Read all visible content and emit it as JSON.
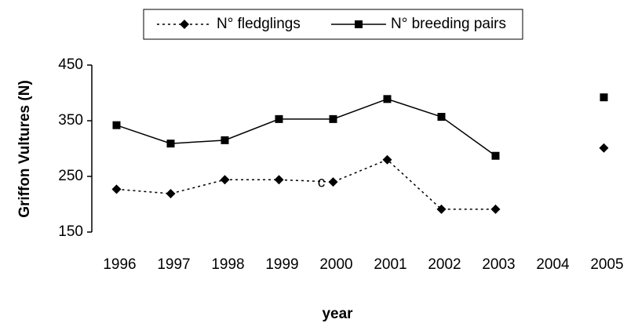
{
  "chart_data": {
    "type": "line",
    "categories": [
      "1996",
      "1997",
      "1998",
      "1999",
      "2000",
      "2001",
      "2002",
      "2003",
      "2004",
      "2005"
    ],
    "series": [
      {
        "name": "N° fledglings",
        "color": "#000000",
        "dash": "dotted",
        "marker": "diamond",
        "values": [
          227,
          219,
          244,
          244,
          240,
          280,
          191,
          191,
          null,
          301
        ]
      },
      {
        "name": "N° breeding pairs",
        "color": "#000000",
        "dash": "solid",
        "marker": "square",
        "values": [
          342,
          309,
          315,
          353,
          353,
          389,
          357,
          287,
          null,
          392
        ]
      }
    ],
    "ylim": [
      150,
      450
    ],
    "yticks": [
      150,
      250,
      350,
      450
    ],
    "y_label": "Griffon Vultures (N)",
    "x_label": "year",
    "annotations": [
      {
        "text": "c",
        "category": 4,
        "value": 238
      }
    ],
    "legend": "top",
    "grid": false
  }
}
